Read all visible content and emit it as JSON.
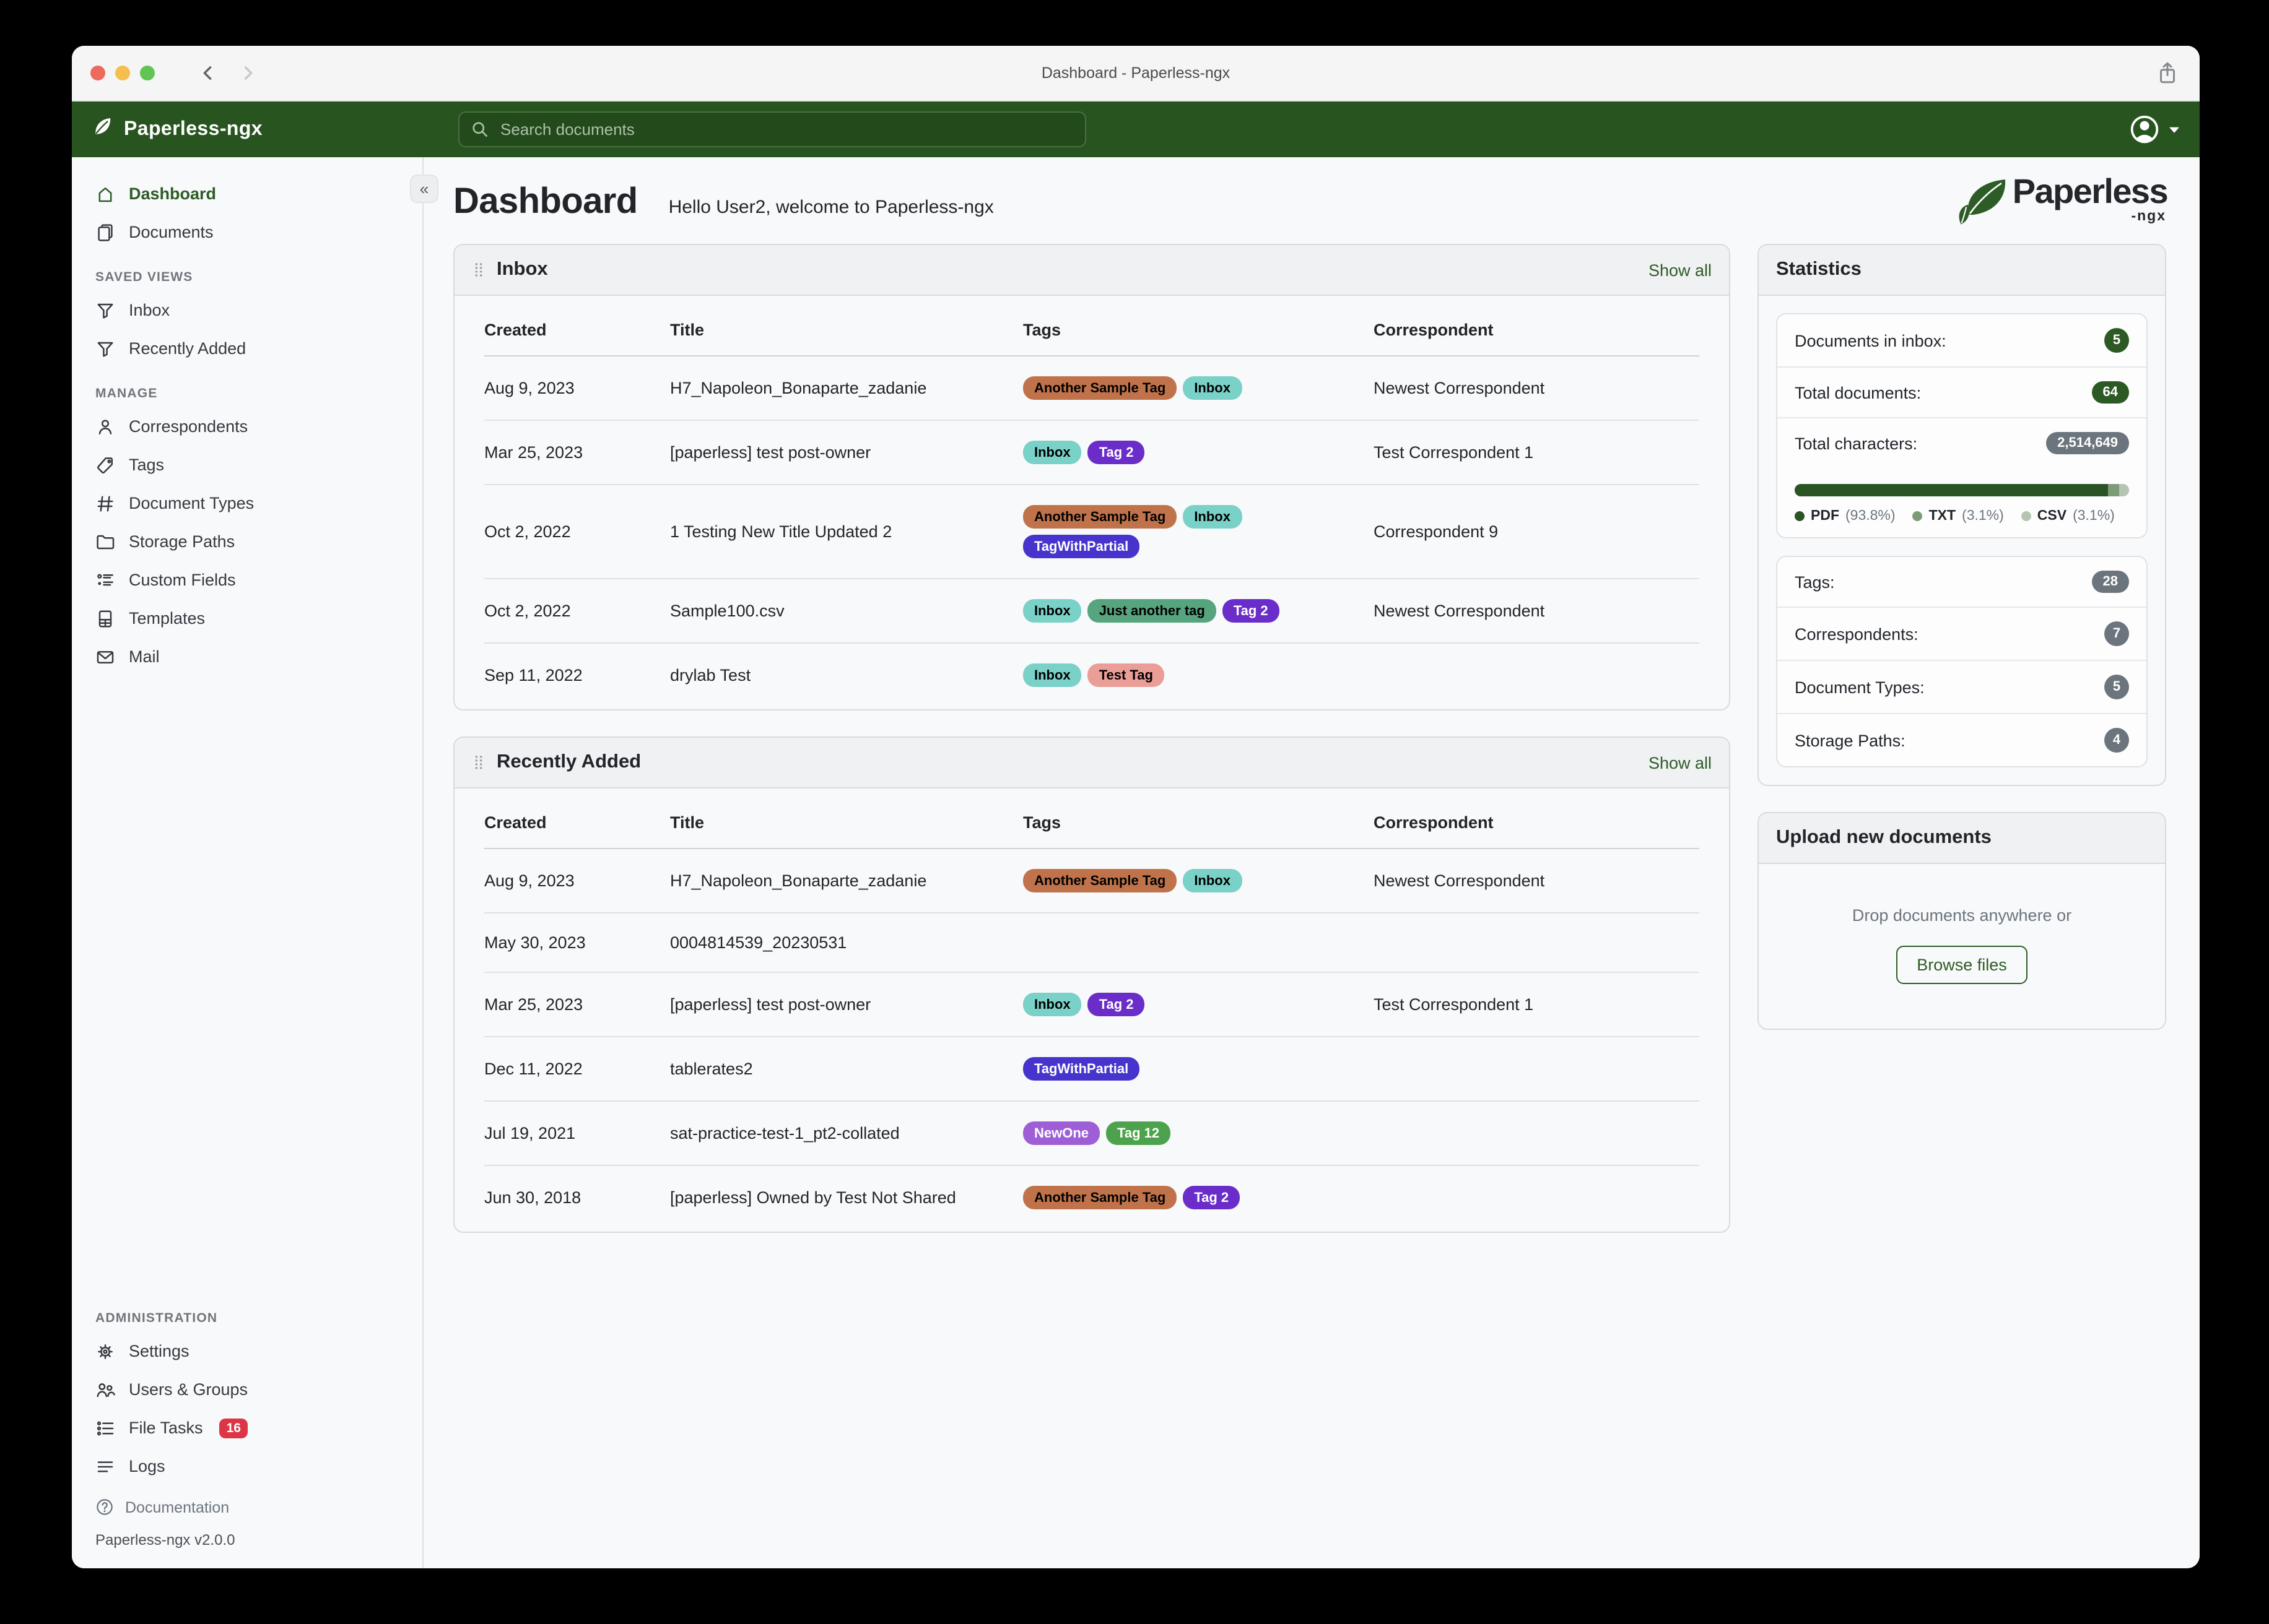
{
  "titlebar": {
    "title": "Dashboard - Paperless-ngx"
  },
  "navbar": {
    "brand": "Paperless-ngx",
    "search_placeholder": "Search documents"
  },
  "sidebar": {
    "collapse_glyph": "«",
    "top_groups": [
      {
        "label": null,
        "items": [
          {
            "label": "Dashboard",
            "icon": "home",
            "active": true
          },
          {
            "label": "Documents",
            "icon": "documents"
          }
        ]
      },
      {
        "label": "SAVED VIEWS",
        "items": [
          {
            "label": "Inbox",
            "icon": "filter"
          },
          {
            "label": "Recently Added",
            "icon": "filter"
          }
        ]
      },
      {
        "label": "MANAGE",
        "items": [
          {
            "label": "Correspondents",
            "icon": "person"
          },
          {
            "label": "Tags",
            "icon": "tag"
          },
          {
            "label": "Document Types",
            "icon": "hash"
          },
          {
            "label": "Storage Paths",
            "icon": "folder"
          },
          {
            "label": "Custom Fields",
            "icon": "custom-fields"
          },
          {
            "label": "Templates",
            "icon": "template"
          },
          {
            "label": "Mail",
            "icon": "mail"
          }
        ]
      }
    ],
    "bottom_group": {
      "label": "ADMINISTRATION",
      "items": [
        {
          "label": "Settings",
          "icon": "gear"
        },
        {
          "label": "Users & Groups",
          "icon": "users"
        },
        {
          "label": "File Tasks",
          "icon": "tasks",
          "badge": "16"
        },
        {
          "label": "Logs",
          "icon": "logs"
        }
      ]
    },
    "documentation": {
      "label": "Documentation",
      "icon": "question"
    },
    "version": "Paperless-ngx v2.0.0"
  },
  "main": {
    "title": "Dashboard",
    "greeting": "Hello User2, welcome to Paperless-ngx",
    "logo_word": "Paperless",
    "logo_sub": "-ngx"
  },
  "widgets": [
    {
      "id": "inbox",
      "title": "Inbox",
      "show_all": "Show all",
      "columns": [
        "Created",
        "Title",
        "Tags",
        "Correspondent"
      ],
      "rows": [
        {
          "created": "Aug 9, 2023",
          "title": "H7_Napoleon_Bonaparte_zadanie",
          "tags": [
            "Another Sample Tag",
            "Inbox"
          ],
          "correspondent": "Newest Correspondent"
        },
        {
          "created": "Mar 25, 2023",
          "title": "[paperless] test post-owner",
          "tags": [
            "Inbox",
            "Tag 2"
          ],
          "correspondent": "Test Correspondent 1"
        },
        {
          "created": "Oct 2, 2022",
          "title": "1 Testing New Title Updated 2",
          "tags": [
            "Another Sample Tag",
            "Inbox",
            "TagWithPartial"
          ],
          "correspondent": "Correspondent 9"
        },
        {
          "created": "Oct 2, 2022",
          "title": "Sample100.csv",
          "tags": [
            "Inbox",
            "Just another tag",
            "Tag 2"
          ],
          "correspondent": "Newest Correspondent"
        },
        {
          "created": "Sep 11, 2022",
          "title": "drylab Test",
          "tags": [
            "Inbox",
            "Test Tag"
          ],
          "correspondent": ""
        }
      ]
    },
    {
      "id": "recently-added",
      "title": "Recently Added",
      "show_all": "Show all",
      "columns": [
        "Created",
        "Title",
        "Tags",
        "Correspondent"
      ],
      "rows": [
        {
          "created": "Aug 9, 2023",
          "title": "H7_Napoleon_Bonaparte_zadanie",
          "tags": [
            "Another Sample Tag",
            "Inbox"
          ],
          "correspondent": "Newest Correspondent"
        },
        {
          "created": "May 30, 2023",
          "title": "0004814539_20230531",
          "tags": [],
          "correspondent": ""
        },
        {
          "created": "Mar 25, 2023",
          "title": "[paperless] test post-owner",
          "tags": [
            "Inbox",
            "Tag 2"
          ],
          "correspondent": "Test Correspondent 1"
        },
        {
          "created": "Dec 11, 2022",
          "title": "tablerates2",
          "tags": [
            "TagWithPartial"
          ],
          "correspondent": ""
        },
        {
          "created": "Jul 19, 2021",
          "title": "sat-practice-test-1_pt2-collated",
          "tags": [
            "NewOne",
            "Tag 12"
          ],
          "correspondent": ""
        },
        {
          "created": "Jun 30, 2018",
          "title": "[paperless] Owned by Test Not Shared",
          "tags": [
            "Another Sample Tag",
            "Tag 2"
          ],
          "correspondent": ""
        }
      ]
    }
  ],
  "tag_palette": {
    "Another Sample Tag": {
      "bg": "#c0734a",
      "fg": "#000000"
    },
    "Inbox": {
      "bg": "#79d1c7",
      "fg": "#000000"
    },
    "Tag 2": {
      "bg": "#6b2dc9",
      "fg": "#ffffff"
    },
    "TagWithPartial": {
      "bg": "#4734cd",
      "fg": "#ffffff"
    },
    "Just another tag": {
      "bg": "#56a57f",
      "fg": "#000000"
    },
    "Test Tag": {
      "bg": "#eb9d98",
      "fg": "#000000"
    },
    "NewOne": {
      "bg": "#9e5fd6",
      "fg": "#ffffff"
    },
    "Tag 12": {
      "bg": "#4da34d",
      "fg": "#ffffff"
    }
  },
  "statistics": {
    "title": "Statistics",
    "group1": [
      {
        "label": "Documents in inbox:",
        "value": "5",
        "color": "green",
        "shape": "circle"
      },
      {
        "label": "Total documents:",
        "value": "64",
        "color": "green",
        "shape": "pill"
      },
      {
        "label": "Total characters:",
        "value": "2,514,649",
        "color": "gray",
        "shape": "pill"
      }
    ],
    "file_type_distribution": [
      {
        "name": "PDF",
        "pct_label": "(93.8%)",
        "pct": 93.8,
        "color": "#2b5425"
      },
      {
        "name": "TXT",
        "pct_label": "(3.1%)",
        "pct": 3.1,
        "color": "#7e9b78"
      },
      {
        "name": "CSV",
        "pct_label": "(3.1%)",
        "pct": 3.1,
        "color": "#b5c5b1"
      }
    ],
    "group2": [
      {
        "label": "Tags:",
        "value": "28",
        "color": "gray",
        "shape": "pill"
      },
      {
        "label": "Correspondents:",
        "value": "7",
        "color": "gray",
        "shape": "circle"
      },
      {
        "label": "Document Types:",
        "value": "5",
        "color": "gray",
        "shape": "circle"
      },
      {
        "label": "Storage Paths:",
        "value": "4",
        "color": "gray",
        "shape": "circle"
      }
    ]
  },
  "upload": {
    "title": "Upload new documents",
    "drop_text": "Drop documents anywhere or",
    "browse_label": "Browse files"
  }
}
